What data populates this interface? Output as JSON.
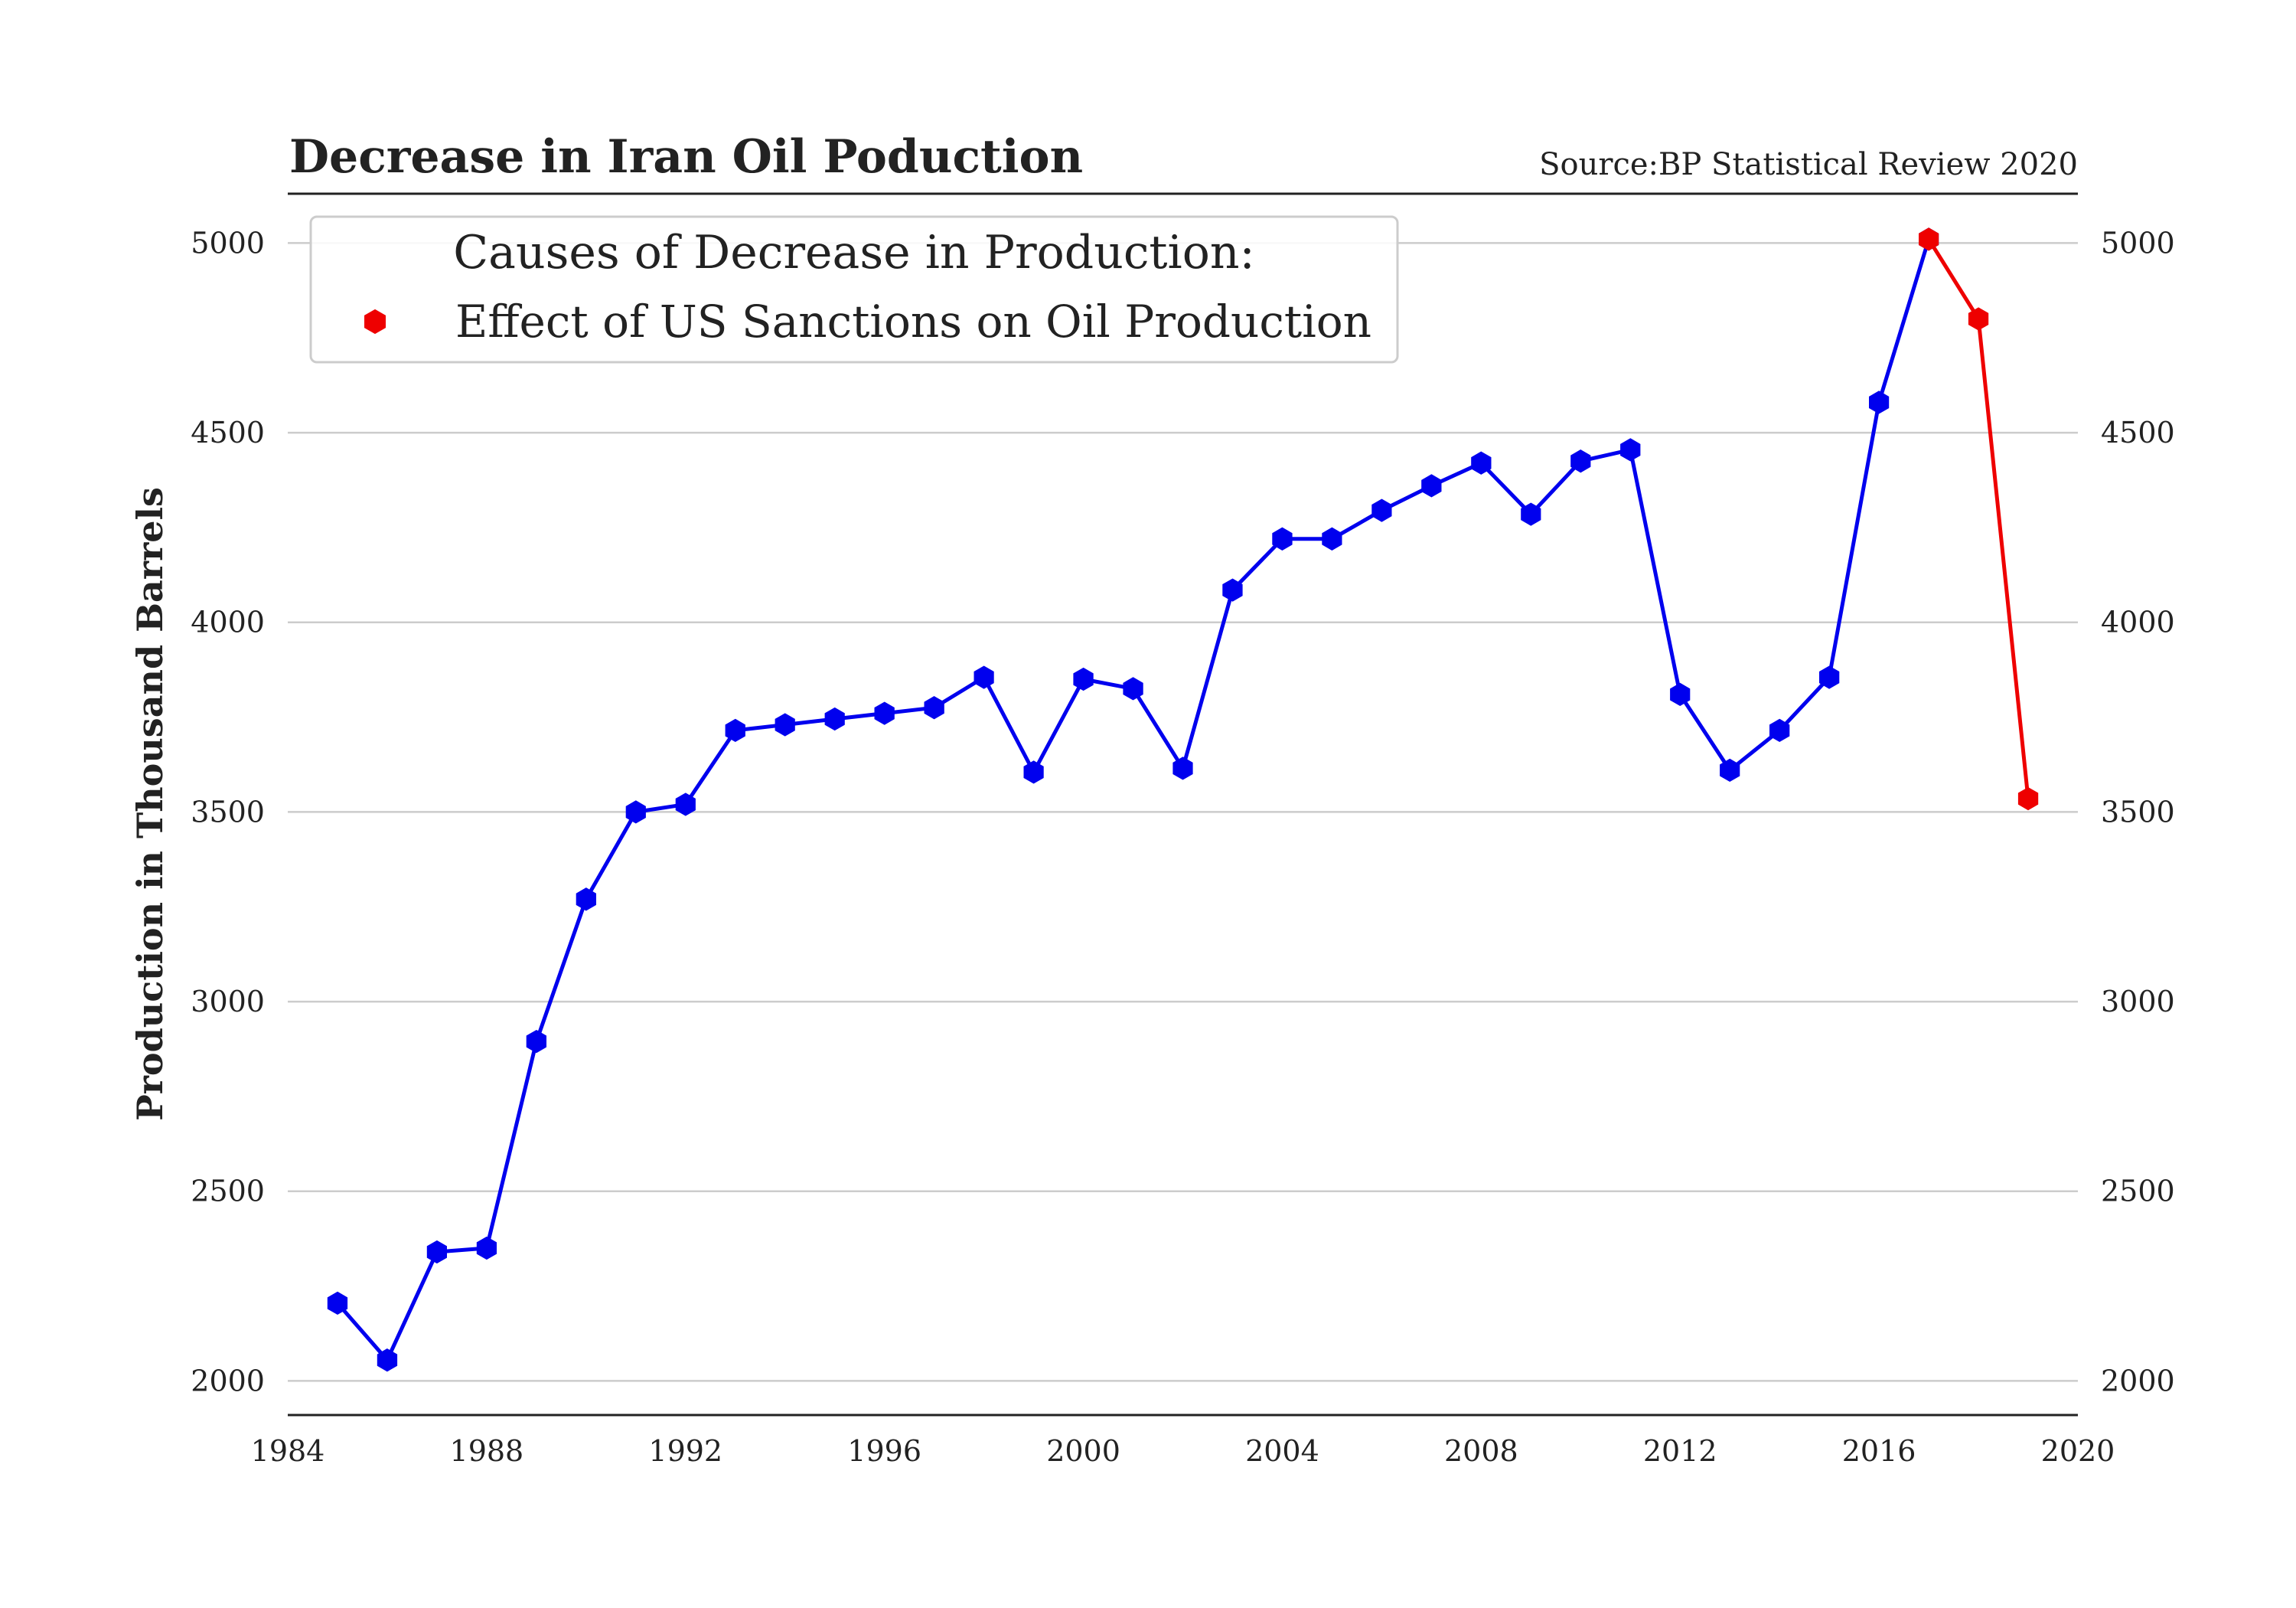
{
  "chart_data": {
    "type": "line",
    "title": "Decrease in Iran Oil Poduction",
    "source_note": "Source:BP Statistical Review 2020",
    "ylabel": "Production in Thousand Barrels",
    "xlabel": "",
    "xlim": [
      1984,
      2020
    ],
    "ylim": [
      1910,
      5130
    ],
    "x_ticks": [
      "1984",
      "1988",
      "1992",
      "1996",
      "2000",
      "2004",
      "2008",
      "2012",
      "2016",
      "2020"
    ],
    "y_ticks": [
      "2000",
      "2500",
      "3000",
      "3500",
      "4000",
      "4500",
      "5000"
    ],
    "y_ticks_right": true,
    "grid": "horizontal",
    "legend": {
      "title": "Causes of Decrease in Production:",
      "entries": [
        "Effect of US Sanctions on Oil Production"
      ],
      "placement": "upper-left"
    },
    "series": [
      {
        "color": "#0000ee",
        "x": [
          1985,
          1986,
          1987,
          1988,
          1989,
          1990,
          1991,
          1992,
          1993,
          1994,
          1995,
          1996,
          1997,
          1998,
          1999,
          2000,
          2001,
          2002,
          2003,
          2004,
          2005,
          2006,
          2007,
          2008,
          2009,
          2010,
          2011,
          2012,
          2013,
          2014,
          2015,
          2016,
          2017
        ],
        "y": [
          2205,
          2055,
          2340,
          2350,
          2895,
          3270,
          3500,
          3520,
          3715,
          3730,
          3745,
          3760,
          3775,
          3855,
          3605,
          3850,
          3825,
          3615,
          4085,
          4220,
          4220,
          4295,
          4360,
          4420,
          4285,
          4425,
          4455,
          3810,
          3610,
          3715,
          3855,
          4580,
          5010
        ]
      },
      {
        "name": "Effect of US Sanctions on Oil Production",
        "color": "#ee0000",
        "x": [
          2017,
          2018,
          2019
        ],
        "y": [
          5010,
          4800,
          3535
        ]
      }
    ]
  }
}
